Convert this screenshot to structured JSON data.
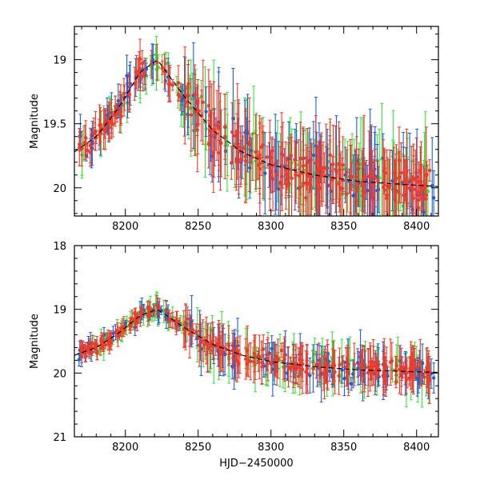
{
  "chart_data": [
    {
      "type": "scatter",
      "xlabel": "",
      "ylabel": "Magnitude",
      "xlim": [
        8165,
        8415
      ],
      "ylim": [
        20.22,
        18.74
      ],
      "y_inverted": true,
      "x_ticks": [
        8200,
        8250,
        8300,
        8350,
        8400
      ],
      "x_tick_labels": [
        "8200",
        "8250",
        "8300",
        "8350",
        "8400"
      ],
      "y_ticks": [
        19,
        19.5,
        20
      ],
      "y_tick_labels": [
        "19",
        "19.5",
        "20"
      ],
      "grid": false,
      "legend": "none",
      "series_colors": {
        "blue": "#1f5fd8",
        "green": "#3fe03f",
        "red": "#f03a2a"
      },
      "model_curve": {
        "style": "dashed",
        "x": [
          8165,
          8180,
          8195,
          8210,
          8222,
          8240,
          8260,
          8280,
          8300,
          8330,
          8360,
          8400,
          8415
        ],
        "y": [
          19.72,
          19.6,
          19.38,
          19.1,
          19.0,
          19.28,
          19.55,
          19.72,
          19.82,
          19.9,
          19.95,
          19.98,
          19.99
        ]
      }
    },
    {
      "type": "scatter",
      "xlabel": "HJD−2450000",
      "ylabel": "Magnitude",
      "xlim": [
        8165,
        8415
      ],
      "ylim": [
        21,
        18
      ],
      "y_inverted": true,
      "x_ticks": [
        8200,
        8250,
        8300,
        8350,
        8400
      ],
      "x_tick_labels": [
        "8200",
        "8250",
        "8300",
        "8350",
        "8400"
      ],
      "y_ticks": [
        18,
        19,
        20,
        21
      ],
      "y_tick_labels": [
        "18",
        "19",
        "20",
        "21"
      ],
      "grid": false,
      "legend": "none",
      "series_colors": {
        "blue": "#1f5fd8",
        "green": "#3fe03f",
        "red": "#f03a2a"
      },
      "model_curve": {
        "style": "dashed",
        "x": [
          8165,
          8180,
          8195,
          8210,
          8222,
          8240,
          8260,
          8280,
          8300,
          8330,
          8360,
          8400,
          8415
        ],
        "y": [
          19.72,
          19.6,
          19.38,
          19.1,
          19.0,
          19.28,
          19.55,
          19.72,
          19.82,
          19.9,
          19.95,
          19.98,
          19.99
        ]
      }
    }
  ]
}
